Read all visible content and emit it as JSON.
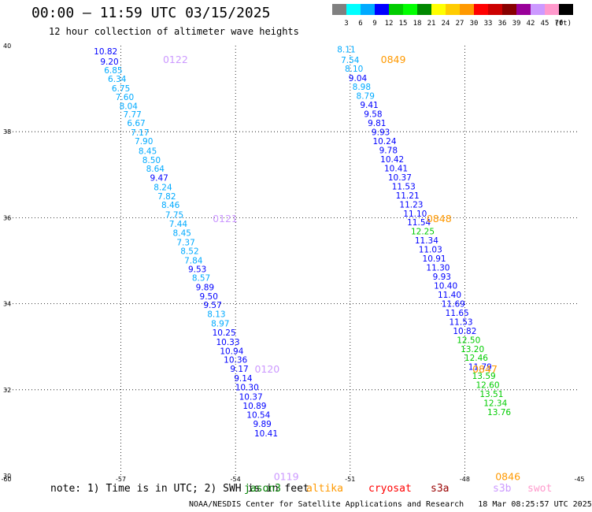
{
  "header": {
    "title": "00:00 — 11:59 UTC 03/15/2025",
    "subtitle": "12 hour collection of altimeter wave heights"
  },
  "colorbar": {
    "labels": [
      "3",
      "6",
      "9",
      "12",
      "15",
      "18",
      "21",
      "24",
      "27",
      "30",
      "33",
      "36",
      "39",
      "42",
      "45",
      "70"
    ],
    "unit": "(ft)",
    "colors": [
      "#808080",
      "#00ffff",
      "#00aaff",
      "#0000ff",
      "#00cc00",
      "#00ff00",
      "#008800",
      "#ffff00",
      "#ffcc00",
      "#ff9900",
      "#ff0000",
      "#cc0000",
      "#880000",
      "#990099",
      "#cc99ff",
      "#ff99cc",
      "#000000"
    ]
  },
  "footer": {
    "note": "note: 1) Time is in UTC; 2) SWH is in feet",
    "credit": "NOAA/NESDIS Center for Satellite Applications and Research   18 Mar 08:25:57 UTC 2025",
    "satellites": [
      {
        "name": "jason3",
        "color": "#008000"
      },
      {
        "name": "altika",
        "color": "#ff9900"
      },
      {
        "name": "cryosat",
        "color": "#ff0000"
      },
      {
        "name": "s3a",
        "color": "#990000"
      },
      {
        "name": "s3b",
        "color": "#cc99ff"
      },
      {
        "name": "swot",
        "color": "#ff99cc"
      }
    ]
  },
  "chart_data": {
    "type": "scatter",
    "xlim": [
      -60,
      -45
    ],
    "ylim": [
      30,
      40
    ],
    "xticks": [
      "-60",
      "-57",
      "-54",
      "-51",
      "-48",
      "-45"
    ],
    "yticks": [
      "30",
      "32",
      "34",
      "36",
      "38",
      "40"
    ],
    "grid": true,
    "series": [
      {
        "name": "s3b",
        "color_key": "s3b",
        "times": [
          {
            "label": "0122",
            "x": -55.9,
            "y": 39.6
          },
          {
            "label": "0121",
            "x": -54.6,
            "y": 35.9
          },
          {
            "label": "0120",
            "x": -53.5,
            "y": 32.4
          },
          {
            "label": "0119",
            "x": -53.0,
            "y": 29.9
          }
        ],
        "points": [
          {
            "x": -57.4,
            "y": 39.8,
            "v": "10.82"
          },
          {
            "x": -57.3,
            "y": 39.56,
            "v": "9.20"
          },
          {
            "x": -57.2,
            "y": 39.36,
            "v": "6.85"
          },
          {
            "x": -57.1,
            "y": 39.16,
            "v": "6.34"
          },
          {
            "x": -57.0,
            "y": 38.94,
            "v": "6.75"
          },
          {
            "x": -56.9,
            "y": 38.74,
            "v": "7.60"
          },
          {
            "x": -56.8,
            "y": 38.53,
            "v": "8.04"
          },
          {
            "x": -56.7,
            "y": 38.33,
            "v": "7.77"
          },
          {
            "x": -56.6,
            "y": 38.13,
            "v": "6.67"
          },
          {
            "x": -56.5,
            "y": 37.91,
            "v": "7.17"
          },
          {
            "x": -56.4,
            "y": 37.71,
            "v": "7.90"
          },
          {
            "x": -56.3,
            "y": 37.48,
            "v": "8.45"
          },
          {
            "x": -56.2,
            "y": 37.27,
            "v": "8.50"
          },
          {
            "x": -56.1,
            "y": 37.07,
            "v": "8.64"
          },
          {
            "x": -56.0,
            "y": 36.86,
            "v": "9.47"
          },
          {
            "x": -55.9,
            "y": 36.64,
            "v": "8.24"
          },
          {
            "x": -55.8,
            "y": 36.43,
            "v": "7.82"
          },
          {
            "x": -55.7,
            "y": 36.23,
            "v": "8.46"
          },
          {
            "x": -55.6,
            "y": 36.0,
            "v": "7.75"
          },
          {
            "x": -55.5,
            "y": 35.79,
            "v": "7.44"
          },
          {
            "x": -55.4,
            "y": 35.58,
            "v": "8.45"
          },
          {
            "x": -55.3,
            "y": 35.36,
            "v": "7.37"
          },
          {
            "x": -55.2,
            "y": 35.16,
            "v": "8.52"
          },
          {
            "x": -55.1,
            "y": 34.94,
            "v": "7.84"
          },
          {
            "x": -55.0,
            "y": 34.73,
            "v": "9.53"
          },
          {
            "x": -54.9,
            "y": 34.53,
            "v": "8.57"
          },
          {
            "x": -54.8,
            "y": 34.31,
            "v": "9.89"
          },
          {
            "x": -54.7,
            "y": 34.1,
            "v": "9.50"
          },
          {
            "x": -54.6,
            "y": 33.9,
            "v": "9.57"
          },
          {
            "x": -54.5,
            "y": 33.69,
            "v": "8.13"
          },
          {
            "x": -54.4,
            "y": 33.47,
            "v": "8.97"
          },
          {
            "x": -54.3,
            "y": 33.26,
            "v": "10.25"
          },
          {
            "x": -54.2,
            "y": 33.04,
            "v": "10.33"
          },
          {
            "x": -54.1,
            "y": 32.83,
            "v": "10.94"
          },
          {
            "x": -54.0,
            "y": 32.63,
            "v": "10.36"
          },
          {
            "x": -53.9,
            "y": 32.42,
            "v": "9.17"
          },
          {
            "x": -53.8,
            "y": 32.2,
            "v": "9.14"
          },
          {
            "x": -53.7,
            "y": 31.99,
            "v": "10.30"
          },
          {
            "x": -53.6,
            "y": 31.77,
            "v": "10.37"
          },
          {
            "x": -53.5,
            "y": 31.56,
            "v": "10.89"
          },
          {
            "x": -53.4,
            "y": 31.35,
            "v": "10.54"
          },
          {
            "x": -53.3,
            "y": 31.14,
            "v": "9.89"
          },
          {
            "x": -53.2,
            "y": 30.92,
            "v": "10.41"
          }
        ]
      },
      {
        "name": "altika",
        "color_key": "altika",
        "times": [
          {
            "label": "0849",
            "x": -50.2,
            "y": 39.6
          },
          {
            "label": "0848",
            "x": -49.0,
            "y": 35.9
          },
          {
            "label": "0847",
            "x": -47.8,
            "y": 32.4
          },
          {
            "label": "0846",
            "x": -47.2,
            "y": 29.9
          }
        ],
        "points": [
          {
            "x": -51.1,
            "y": 39.84,
            "v": "8.11"
          },
          {
            "x": -51.0,
            "y": 39.6,
            "v": "7.54"
          },
          {
            "x": -50.9,
            "y": 39.4,
            "v": "8.10"
          },
          {
            "x": -50.8,
            "y": 39.18,
            "v": "9.04"
          },
          {
            "x": -50.7,
            "y": 38.97,
            "v": "8.98"
          },
          {
            "x": -50.6,
            "y": 38.76,
            "v": "8.79"
          },
          {
            "x": -50.5,
            "y": 38.55,
            "v": "9.41"
          },
          {
            "x": -50.4,
            "y": 38.34,
            "v": "9.58"
          },
          {
            "x": -50.3,
            "y": 38.13,
            "v": "9.81"
          },
          {
            "x": -50.2,
            "y": 37.92,
            "v": "9.93"
          },
          {
            "x": -50.1,
            "y": 37.71,
            "v": "10.24"
          },
          {
            "x": -50.0,
            "y": 37.5,
            "v": "9.78"
          },
          {
            "x": -49.9,
            "y": 37.29,
            "v": "10.42"
          },
          {
            "x": -49.8,
            "y": 37.08,
            "v": "10.41"
          },
          {
            "x": -49.7,
            "y": 36.87,
            "v": "10.37"
          },
          {
            "x": -49.6,
            "y": 36.66,
            "v": "11.53"
          },
          {
            "x": -49.5,
            "y": 36.45,
            "v": "11.21"
          },
          {
            "x": -49.4,
            "y": 36.24,
            "v": "11.23"
          },
          {
            "x": -49.3,
            "y": 36.03,
            "v": "11.10"
          },
          {
            "x": -49.2,
            "y": 35.82,
            "v": "11.54"
          },
          {
            "x": -49.1,
            "y": 35.61,
            "v": "12.25"
          },
          {
            "x": -49.0,
            "y": 35.4,
            "v": "11.34"
          },
          {
            "x": -48.9,
            "y": 35.19,
            "v": "11.03"
          },
          {
            "x": -48.8,
            "y": 34.98,
            "v": "10.91"
          },
          {
            "x": -48.7,
            "y": 34.77,
            "v": "11.30"
          },
          {
            "x": -48.6,
            "y": 34.56,
            "v": "9.93"
          },
          {
            "x": -48.5,
            "y": 34.35,
            "v": "10.40"
          },
          {
            "x": -48.4,
            "y": 34.14,
            "v": "11.40"
          },
          {
            "x": -48.3,
            "y": 33.93,
            "v": "11.69"
          },
          {
            "x": -48.2,
            "y": 33.72,
            "v": "11.65"
          },
          {
            "x": -48.1,
            "y": 33.51,
            "v": "11.53"
          },
          {
            "x": -48.0,
            "y": 33.3,
            "v": "10.82"
          },
          {
            "x": -47.9,
            "y": 33.09,
            "v": "12.50"
          },
          {
            "x": -47.8,
            "y": 32.88,
            "v": "13.20"
          },
          {
            "x": -47.7,
            "y": 32.67,
            "v": "12.46"
          },
          {
            "x": -47.6,
            "y": 32.46,
            "v": "11.79"
          },
          {
            "x": -47.5,
            "y": 32.25,
            "v": "13.59"
          },
          {
            "x": -47.4,
            "y": 32.04,
            "v": "12.60"
          },
          {
            "x": -47.3,
            "y": 31.83,
            "v": "13.51"
          },
          {
            "x": -47.2,
            "y": 31.62,
            "v": "12.34"
          },
          {
            "x": -47.1,
            "y": 31.41,
            "v": "13.76"
          }
        ]
      }
    ]
  }
}
